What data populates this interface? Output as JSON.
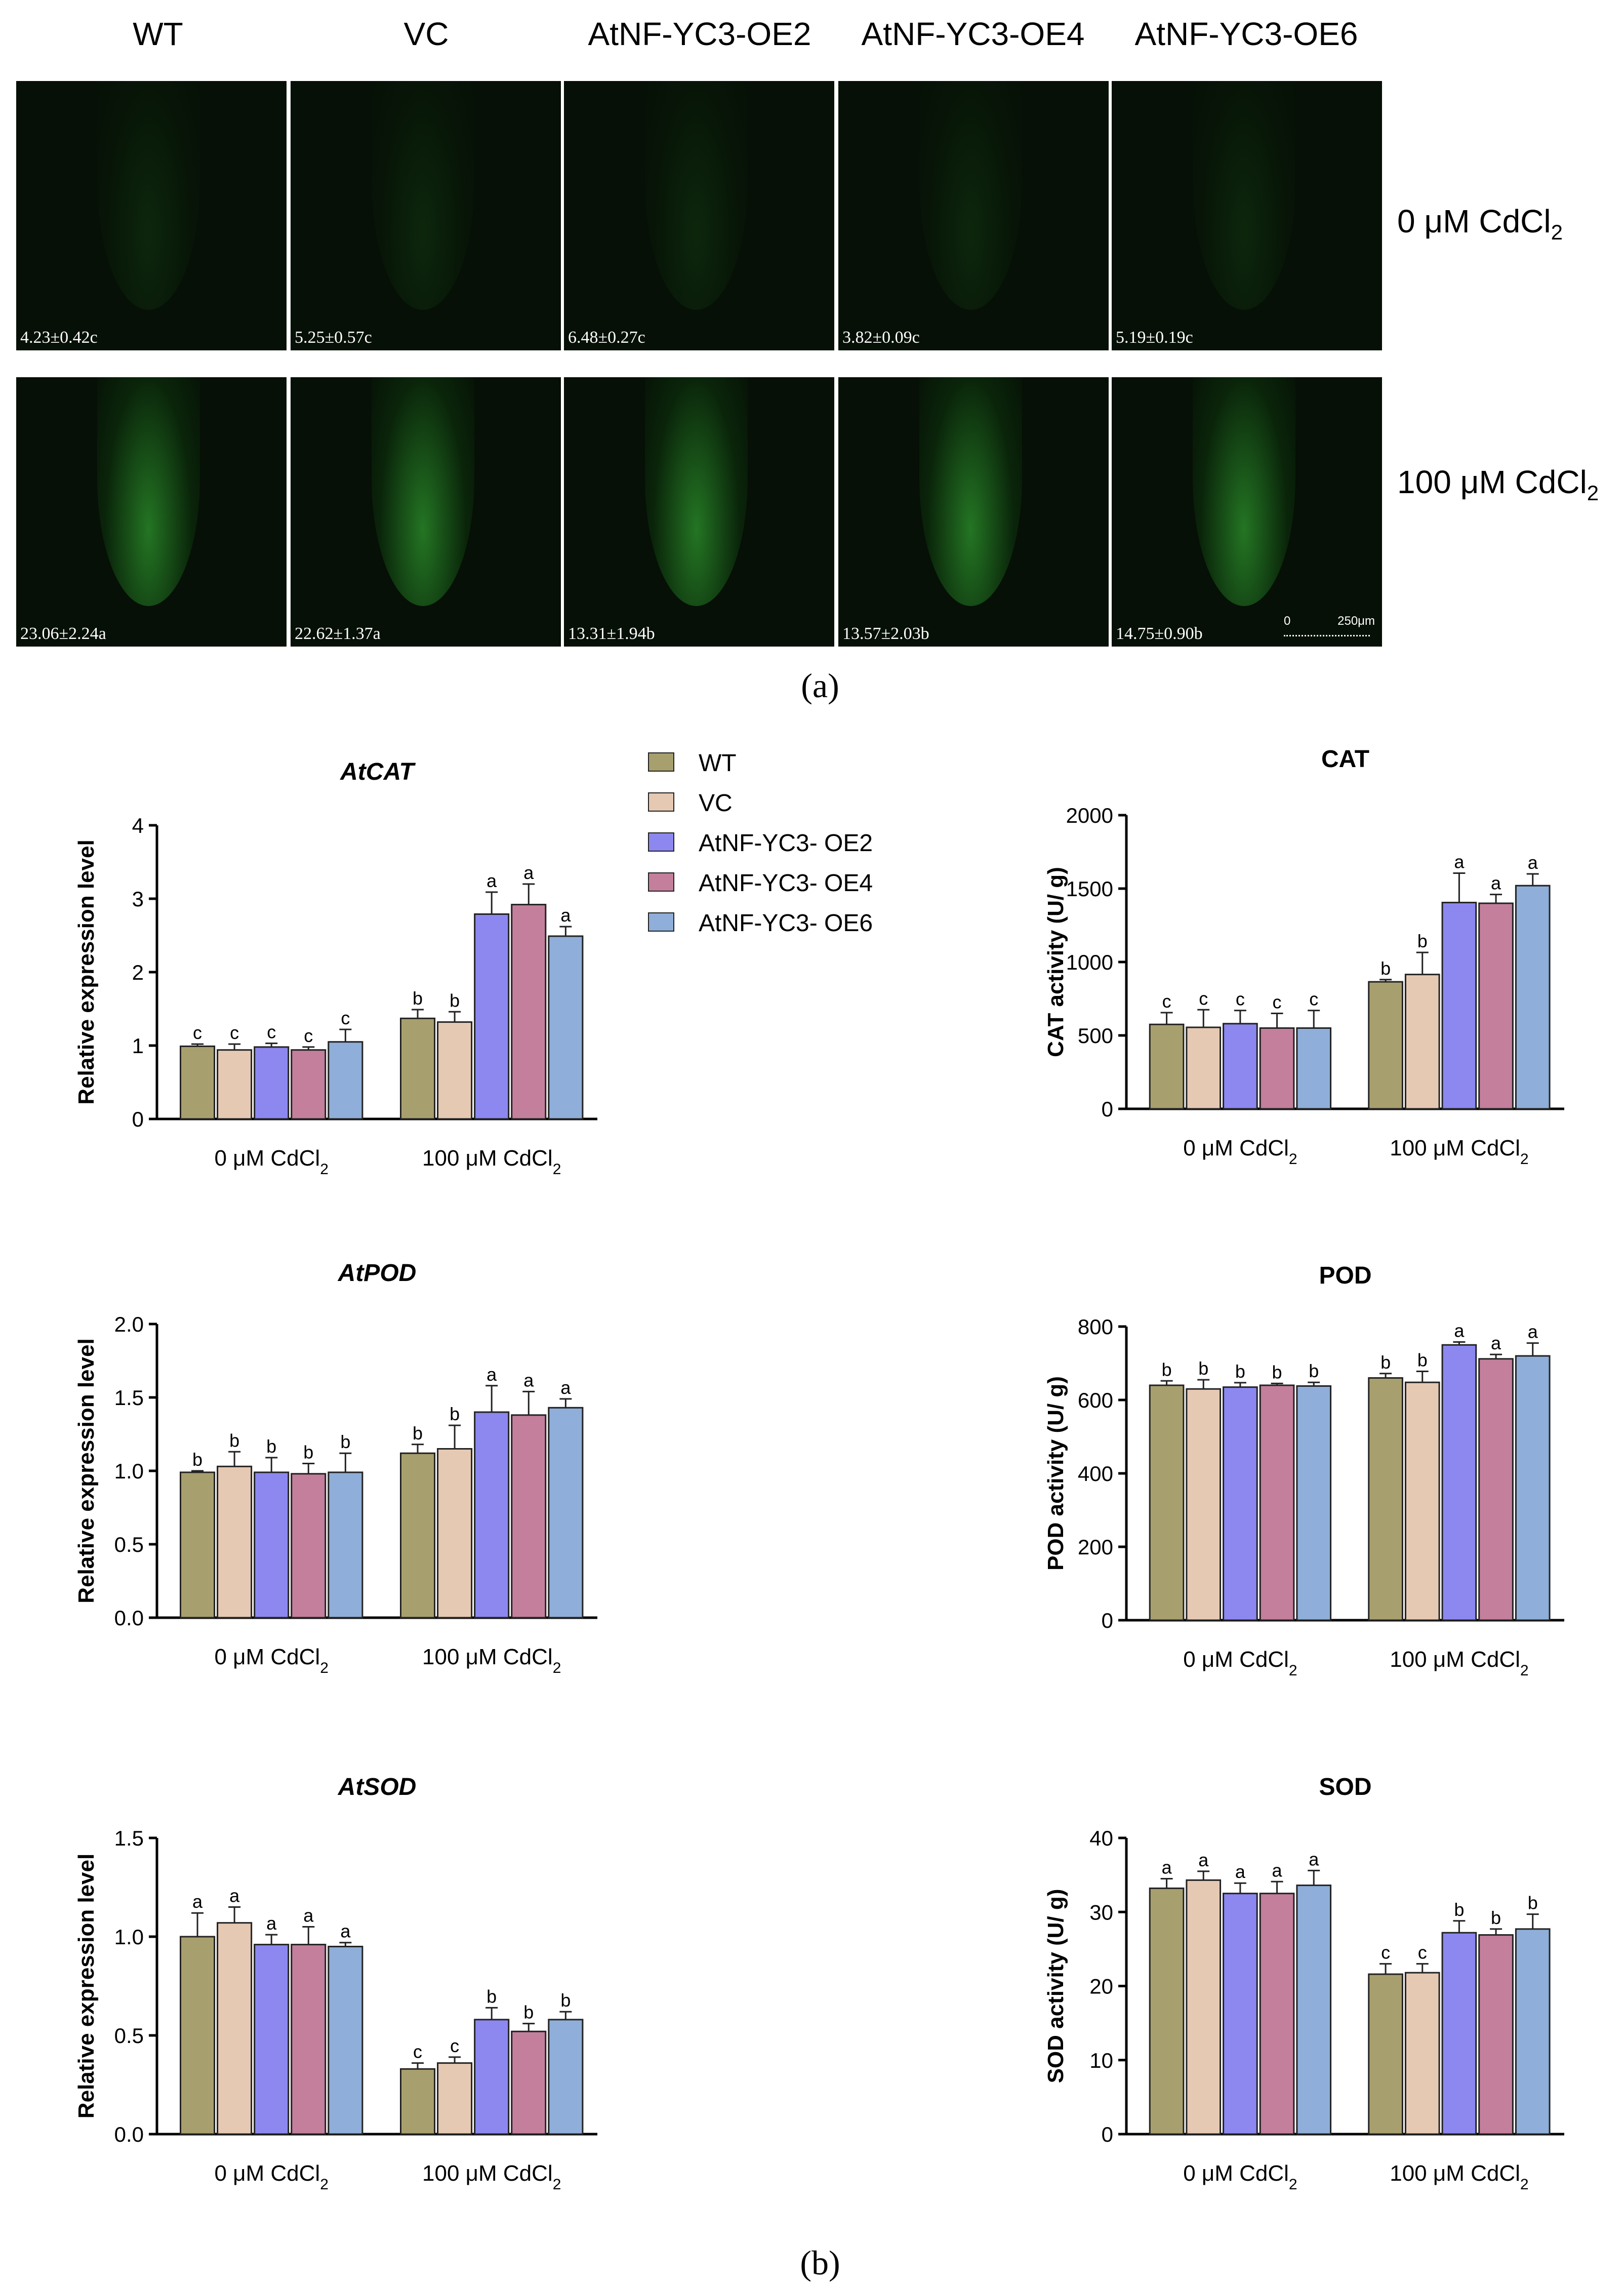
{
  "panel_a": {
    "column_labels": [
      "WT",
      "VC",
      "AtNF-YC3-OE2",
      "AtNF-YC3-OE4",
      "AtNF-YC3-OE6"
    ],
    "row_labels": [
      "0 μM CdCl",
      "100 μM CdCl"
    ],
    "row_label_sub": "2",
    "values": [
      [
        "4.23±0.42c",
        "5.25±0.57c",
        "6.48±0.27c",
        "3.82±0.09c",
        "5.19±0.19c"
      ],
      [
        "23.06±2.24a",
        "22.62±1.37a",
        "13.31±1.94b",
        "13.57±2.03b",
        "14.75±0.90b"
      ]
    ],
    "scale_bar": {
      "zero": "0",
      "length": "250μm"
    },
    "letter": "(a)"
  },
  "panel_b_letter": "(b)",
  "legend": [
    {
      "label": "WT",
      "color": "#a89f6e"
    },
    {
      "label": "VC",
      "color": "#e6c9b3"
    },
    {
      "label": "AtNF-YC3- OE2",
      "color": "#8c88f0"
    },
    {
      "label": "AtNF-YC3- OE4",
      "color": "#c47f9c"
    },
    {
      "label": "AtNF-YC3- OE6",
      "color": "#8faed9"
    }
  ],
  "chart_data": [
    {
      "type": "bar",
      "title": "AtCAT",
      "title_italic": true,
      "ylabel": "Relative expression level",
      "categories": [
        "0 μM CdCl",
        "100 μM CdCl"
      ],
      "category_sub": "2",
      "ylim": [
        0,
        4
      ],
      "yticks": [
        "0",
        "1",
        "2",
        "3",
        "4"
      ],
      "ytick_values": [
        0,
        1,
        2,
        3,
        4
      ],
      "series": [
        {
          "name": "WT",
          "values": [
            0.99,
            1.37
          ],
          "errors": [
            0.03,
            0.12
          ],
          "letters": [
            "c",
            "b"
          ]
        },
        {
          "name": "VC",
          "values": [
            0.94,
            1.32
          ],
          "errors": [
            0.08,
            0.14
          ],
          "letters": [
            "c",
            "b"
          ]
        },
        {
          "name": "AtNF-YC3- OE2",
          "values": [
            0.98,
            2.79
          ],
          "errors": [
            0.05,
            0.3
          ],
          "letters": [
            "c",
            "a"
          ]
        },
        {
          "name": "AtNF-YC3- OE4",
          "values": [
            0.94,
            2.92
          ],
          "errors": [
            0.04,
            0.28
          ],
          "letters": [
            "c",
            "a"
          ]
        },
        {
          "name": "AtNF-YC3- OE6",
          "values": [
            1.05,
            2.49
          ],
          "errors": [
            0.17,
            0.13
          ],
          "letters": [
            "c",
            "a"
          ]
        }
      ]
    },
    {
      "type": "bar",
      "title": "CAT",
      "title_italic": false,
      "ylabel": "CAT activity (U/ g)",
      "categories": [
        "0 μM CdCl",
        "100 μM CdCl"
      ],
      "category_sub": "2",
      "ylim": [
        0,
        2000
      ],
      "yticks": [
        "0",
        "500",
        "1000",
        "1500",
        "2000"
      ],
      "ytick_values": [
        0,
        500,
        1000,
        1500,
        2000
      ],
      "series": [
        {
          "name": "WT",
          "values": [
            575,
            865
          ],
          "errors": [
            80,
            15
          ],
          "letters": [
            "c",
            "b"
          ]
        },
        {
          "name": "VC",
          "values": [
            555,
            915
          ],
          "errors": [
            120,
            150
          ],
          "letters": [
            "c",
            "b"
          ]
        },
        {
          "name": "AtNF-YC3- OE2",
          "values": [
            580,
            1405
          ],
          "errors": [
            90,
            200
          ],
          "letters": [
            "c",
            "a"
          ]
        },
        {
          "name": "AtNF-YC3- OE4",
          "values": [
            550,
            1400
          ],
          "errors": [
            100,
            60
          ],
          "letters": [
            "c",
            "a"
          ]
        },
        {
          "name": "AtNF-YC3- OE6",
          "values": [
            550,
            1520
          ],
          "errors": [
            120,
            80
          ],
          "letters": [
            "c",
            "a"
          ]
        }
      ]
    },
    {
      "type": "bar",
      "title": "AtPOD",
      "title_italic": true,
      "ylabel": "Relative expression level",
      "categories": [
        "0 μM CdCl",
        "100 μM CdCl"
      ],
      "category_sub": "2",
      "ylim": [
        0,
        2.0
      ],
      "yticks": [
        "0.0",
        "0.5",
        "1.0",
        "1.5",
        "2.0"
      ],
      "ytick_values": [
        0,
        0.5,
        1.0,
        1.5,
        2.0
      ],
      "series": [
        {
          "name": "WT",
          "values": [
            0.99,
            1.12
          ],
          "errors": [
            0.01,
            0.06
          ],
          "letters": [
            "b",
            "b"
          ]
        },
        {
          "name": "VC",
          "values": [
            1.03,
            1.15
          ],
          "errors": [
            0.1,
            0.16
          ],
          "letters": [
            "b",
            "b"
          ]
        },
        {
          "name": "AtNF-YC3- OE2",
          "values": [
            0.99,
            1.4
          ],
          "errors": [
            0.1,
            0.18
          ],
          "letters": [
            "b",
            "a"
          ]
        },
        {
          "name": "AtNF-YC3- OE4",
          "values": [
            0.98,
            1.38
          ],
          "errors": [
            0.07,
            0.16
          ],
          "letters": [
            "b",
            "a"
          ]
        },
        {
          "name": "AtNF-YC3- OE6",
          "values": [
            0.99,
            1.43
          ],
          "errors": [
            0.13,
            0.06
          ],
          "letters": [
            "b",
            "a"
          ]
        }
      ]
    },
    {
      "type": "bar",
      "title": "POD",
      "title_italic": false,
      "ylabel": "POD activity (U/ g)",
      "categories": [
        "0 μM CdCl",
        "100 μM CdCl"
      ],
      "category_sub": "2",
      "ylim": [
        0,
        800
      ],
      "yticks": [
        "0",
        "200",
        "400",
        "600",
        "800"
      ],
      "ytick_values": [
        0,
        200,
        400,
        600,
        800
      ],
      "series": [
        {
          "name": "WT",
          "values": [
            640,
            660
          ],
          "errors": [
            12,
            12
          ],
          "letters": [
            "b",
            "b"
          ]
        },
        {
          "name": "VC",
          "values": [
            630,
            648
          ],
          "errors": [
            25,
            30
          ],
          "letters": [
            "b",
            "b"
          ]
        },
        {
          "name": "AtNF-YC3- OE2",
          "values": [
            635,
            750
          ],
          "errors": [
            12,
            8
          ],
          "letters": [
            "b",
            "a"
          ]
        },
        {
          "name": "AtNF-YC3- OE4",
          "values": [
            640,
            712
          ],
          "errors": [
            5,
            12
          ],
          "letters": [
            "b",
            "a"
          ]
        },
        {
          "name": "AtNF-YC3- OE6",
          "values": [
            638,
            720
          ],
          "errors": [
            10,
            35
          ],
          "letters": [
            "b",
            "a"
          ]
        }
      ]
    },
    {
      "type": "bar",
      "title": "AtSOD",
      "title_italic": true,
      "ylabel": "Relative expression level",
      "categories": [
        "0 μM CdCl",
        "100 μM CdCl"
      ],
      "category_sub": "2",
      "ylim": [
        0,
        1.5
      ],
      "yticks": [
        "0.0",
        "0.5",
        "1.0",
        "1.5"
      ],
      "ytick_values": [
        0,
        0.5,
        1.0,
        1.5
      ],
      "series": [
        {
          "name": "WT",
          "values": [
            1.0,
            0.33
          ],
          "errors": [
            0.12,
            0.03
          ],
          "letters": [
            "a",
            "c"
          ]
        },
        {
          "name": "VC",
          "values": [
            1.07,
            0.36
          ],
          "errors": [
            0.08,
            0.03
          ],
          "letters": [
            "a",
            "c"
          ]
        },
        {
          "name": "AtNF-YC3- OE2",
          "values": [
            0.96,
            0.58
          ],
          "errors": [
            0.05,
            0.06
          ],
          "letters": [
            "a",
            "b"
          ]
        },
        {
          "name": "AtNF-YC3- OE4",
          "values": [
            0.96,
            0.52
          ],
          "errors": [
            0.09,
            0.04
          ],
          "letters": [
            "a",
            "b"
          ]
        },
        {
          "name": "AtNF-YC3- OE6",
          "values": [
            0.95,
            0.58
          ],
          "errors": [
            0.02,
            0.04
          ],
          "letters": [
            "a",
            "b"
          ]
        }
      ]
    },
    {
      "type": "bar",
      "title": "SOD",
      "title_italic": false,
      "ylabel": "SOD activity (U/ g)",
      "categories": [
        "0 μM CdCl",
        "100 μM CdCl"
      ],
      "category_sub": "2",
      "ylim": [
        0,
        40
      ],
      "yticks": [
        "0",
        "10",
        "20",
        "30",
        "40"
      ],
      "ytick_values": [
        0,
        10,
        20,
        30,
        40
      ],
      "series": [
        {
          "name": "WT",
          "values": [
            33.2,
            21.6
          ],
          "errors": [
            1.3,
            1.4
          ],
          "letters": [
            "a",
            "c"
          ]
        },
        {
          "name": "VC",
          "values": [
            34.3,
            21.8
          ],
          "errors": [
            1.2,
            1.2
          ],
          "letters": [
            "a",
            "c"
          ]
        },
        {
          "name": "AtNF-YC3- OE2",
          "values": [
            32.5,
            27.2
          ],
          "errors": [
            1.4,
            1.6
          ],
          "letters": [
            "a",
            "b"
          ]
        },
        {
          "name": "AtNF-YC3- OE4",
          "values": [
            32.5,
            26.9
          ],
          "errors": [
            1.6,
            0.8
          ],
          "letters": [
            "a",
            "b"
          ]
        },
        {
          "name": "AtNF-YC3- OE6",
          "values": [
            33.6,
            27.7
          ],
          "errors": [
            2.0,
            2.0
          ],
          "letters": [
            "a",
            "b"
          ]
        }
      ]
    }
  ]
}
